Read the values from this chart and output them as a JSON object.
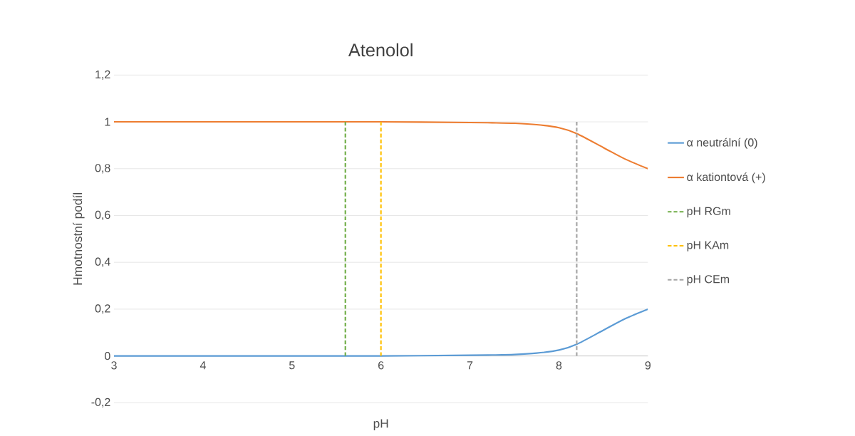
{
  "chart_data": {
    "type": "line",
    "title": "Atenolol",
    "xlabel": "pH",
    "ylabel": "Hmotnostní podíl",
    "xlim": [
      3,
      9
    ],
    "xticks": [
      3,
      4,
      5,
      6,
      7,
      8,
      9
    ],
    "ylim": [
      -0.2,
      1.2
    ],
    "yticks": [
      {
        "value": -0.2,
        "label": "-0,2"
      },
      {
        "value": 0,
        "label": "0"
      },
      {
        "value": 0.2,
        "label": "0,2"
      },
      {
        "value": 0.4,
        "label": "0,4"
      },
      {
        "value": 0.6,
        "label": "0,6"
      },
      {
        "value": 0.8,
        "label": "0,8"
      },
      {
        "value": 1,
        "label": "1"
      },
      {
        "value": 1.2,
        "label": "1,2"
      }
    ],
    "grid": "y",
    "legend": "right",
    "marker": "none",
    "series": [
      {
        "name": "α neutrální (0)",
        "color": "#5b9bd5",
        "line_style": "solid",
        "x": [
          3,
          4,
          5,
          6,
          7,
          7.25,
          7.5,
          7.75,
          8,
          8.2,
          8.5,
          8.75,
          9
        ],
        "values": [
          0,
          0,
          0,
          0,
          0.003,
          0.004,
          0.006,
          0.012,
          0.025,
          0.05,
          0.11,
          0.16,
          0.2
        ]
      },
      {
        "name": "α kationtová (+)",
        "color": "#ed7d31",
        "line_style": "solid",
        "x": [
          3,
          4,
          5,
          6,
          7,
          7.25,
          7.5,
          7.75,
          8,
          8.2,
          8.5,
          8.75,
          9
        ],
        "values": [
          1,
          1,
          1,
          1,
          0.997,
          0.996,
          0.994,
          0.988,
          0.975,
          0.95,
          0.89,
          0.84,
          0.8
        ]
      },
      {
        "name": "pH RGm",
        "color": "#70ad47",
        "line_style": "dashed",
        "x": [
          5.6,
          5.6
        ],
        "values": [
          0,
          1
        ]
      },
      {
        "name": "pH KAm",
        "color": "#ffc000",
        "line_style": "dashed",
        "x": [
          6,
          6
        ],
        "values": [
          0,
          1
        ]
      },
      {
        "name": "pH CEm",
        "color": "#a5a5a5",
        "line_style": "dashed",
        "x": [
          8.2,
          8.2
        ],
        "values": [
          0,
          1
        ]
      }
    ]
  }
}
